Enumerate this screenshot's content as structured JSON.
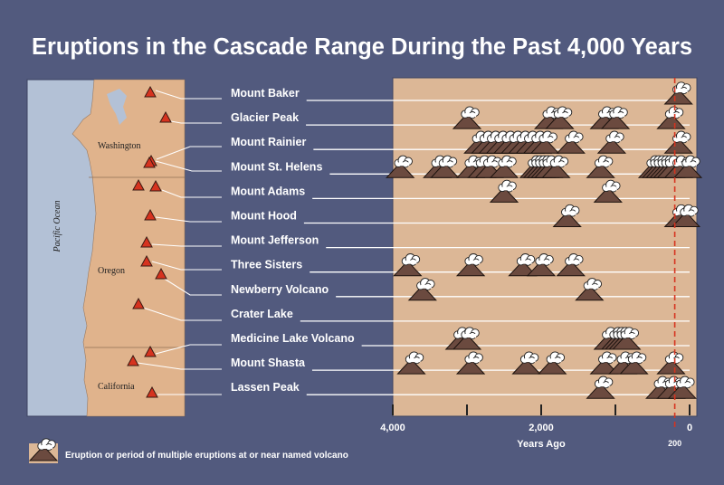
{
  "title": "Eruptions in the Cascade Range During the Past 4,000 Years",
  "map": {
    "ocean_label": "Pacific Ocean",
    "states": [
      "Washington",
      "Oregon",
      "California"
    ]
  },
  "colors": {
    "background": "#525a7e",
    "panel": "#dcb796",
    "land": "#e0b38c",
    "ocean": "#b3c1d6",
    "volcano": "#6b4a3f",
    "marker": "#d6331f",
    "ref_line": "#d6331f"
  },
  "chart_data": {
    "type": "timeline",
    "title": "Eruptions in the Cascade Range During the Past 4,000 Years",
    "xlabel": "Years Ago",
    "x_range": [
      4000,
      0
    ],
    "ticks": [
      {
        "value": 4000,
        "label": "4,000"
      },
      {
        "value": 3000,
        "label": ""
      },
      {
        "value": 2000,
        "label": "2,000"
      },
      {
        "value": 1000,
        "label": ""
      },
      {
        "value": 0,
        "label": "0"
      }
    ],
    "reference_line": {
      "value": 200,
      "label": "200"
    },
    "legend": "Eruption or period of multiple eruptions at or near named volcano",
    "volcanoes": [
      {
        "name": "Mount Baker",
        "eruptions": [
          150
        ]
      },
      {
        "name": "Glacier Peak",
        "eruptions": [
          3000,
          1900,
          1750,
          1150,
          1000,
          250
        ]
      },
      {
        "name": "Mount Rainier",
        "eruptions": [
          2850,
          2750,
          2650,
          2550,
          2450,
          2350,
          2250,
          2150,
          2050,
          1950,
          1600,
          1050,
          150
        ]
      },
      {
        "name": "Mount St. Helens",
        "eruptions": [
          3900,
          3400,
          3300,
          2950,
          2800,
          2700,
          2500,
          2100,
          2050,
          2000,
          1950,
          1900,
          1800,
          1200,
          500,
          450,
          400,
          350,
          300,
          250,
          150,
          25
        ]
      },
      {
        "name": "Mount Adams",
        "eruptions": [
          2500,
          1100
        ]
      },
      {
        "name": "Mount Hood",
        "eruptions": [
          1650,
          150,
          50
        ]
      },
      {
        "name": "Mount Jefferson",
        "eruptions": []
      },
      {
        "name": "Three Sisters",
        "eruptions": [
          3800,
          2950,
          2250,
          2000,
          1600
        ]
      },
      {
        "name": "Newberry Volcano",
        "eruptions": [
          3600,
          1350
        ]
      },
      {
        "name": "Crater Lake",
        "eruptions": []
      },
      {
        "name": "Medicine Lake Volcano",
        "eruptions": [
          3100,
          3000,
          1100,
          1000,
          950,
          900,
          850
        ]
      },
      {
        "name": "Mount Shasta",
        "eruptions": [
          3750,
          2950,
          2200,
          1850,
          1150,
          900,
          750,
          250
        ]
      },
      {
        "name": "Lassen Peak",
        "eruptions": [
          1200,
          400,
          250,
          100
        ]
      }
    ]
  }
}
